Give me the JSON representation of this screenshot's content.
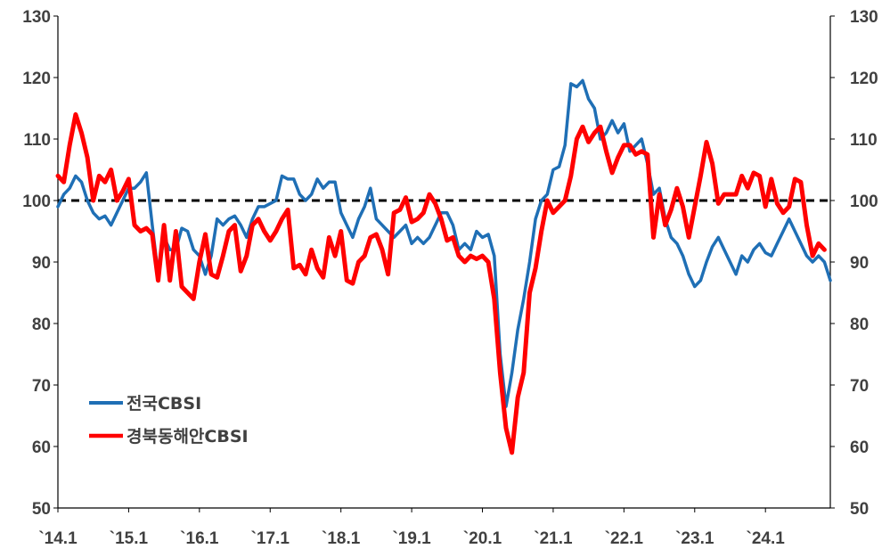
{
  "chart_data": {
    "type": "line",
    "y_left": {
      "min": 50,
      "max": 130,
      "ticks": [
        130,
        120,
        110,
        100,
        90,
        80,
        70,
        60,
        50
      ]
    },
    "y_right": {
      "min": 50,
      "max": 130,
      "ticks": [
        130,
        120,
        110,
        100,
        90,
        80,
        70,
        60,
        50
      ]
    },
    "x_range": [
      0,
      131
    ],
    "x_tick_labels": [
      {
        "label": "`14.1",
        "idx": 0
      },
      {
        "label": "`15.1",
        "idx": 12
      },
      {
        "label": "`16.1",
        "idx": 24
      },
      {
        "label": "`17.1",
        "idx": 36
      },
      {
        "label": "`18.1",
        "idx": 48
      },
      {
        "label": "`19.1",
        "idx": 60
      },
      {
        "label": "`20.1",
        "idx": 72
      },
      {
        "label": "`21.1",
        "idx": 84
      },
      {
        "label": "`22.1",
        "idx": 96
      },
      {
        "label": "`23.1",
        "idx": 108
      },
      {
        "label": "`24.1",
        "idx": 120
      }
    ],
    "reference_line": {
      "value": 100,
      "style": "dashed",
      "color": "#000000"
    },
    "series": [
      {
        "name": "전국CBSI",
        "color": "#1f6fb5",
        "values": [
          99,
          101,
          102,
          104,
          103,
          100,
          98,
          97,
          97.5,
          96,
          98,
          100,
          102,
          102,
          103,
          104.5,
          96,
          88,
          94,
          92,
          92,
          95.5,
          95,
          92,
          91,
          88,
          91,
          97,
          96,
          97,
          97.5,
          96,
          94,
          97,
          99,
          99,
          99.5,
          100,
          104,
          103.5,
          103.5,
          101,
          100,
          101,
          103.5,
          102,
          103,
          103,
          98,
          96,
          94,
          97,
          99,
          102,
          97,
          96,
          95,
          94,
          95,
          96,
          93,
          94,
          93,
          94,
          96,
          98,
          98,
          96,
          92,
          93,
          92,
          95,
          94,
          94.5,
          91,
          75,
          66.5,
          72,
          79,
          84,
          90,
          97,
          100,
          101,
          105,
          105.5,
          109,
          119,
          118.5,
          119.5,
          116.5,
          115,
          110,
          111,
          113,
          111,
          112.5,
          108,
          109,
          110,
          106,
          101,
          102,
          97,
          94,
          93,
          91,
          88,
          86,
          87,
          90,
          92.5,
          94,
          92,
          90,
          88,
          91,
          90,
          92,
          93,
          91.5,
          91,
          93,
          95,
          97,
          95,
          93,
          91,
          90,
          91,
          90,
          87
        ]
      },
      {
        "name": "경북동해안CBSI",
        "color": "#ff0000",
        "values": [
          104,
          103,
          109,
          114,
          111,
          107,
          100,
          104,
          103,
          105,
          100,
          101.5,
          103.5,
          96,
          95,
          95.5,
          94.5,
          87,
          96,
          87,
          95,
          86,
          85,
          84,
          90,
          94.5,
          88,
          87.5,
          91,
          95,
          96,
          88.5,
          91,
          96,
          97,
          95,
          93.5,
          95,
          97,
          98.5,
          89,
          89.5,
          88,
          92,
          89,
          87.5,
          94,
          91,
          95,
          87,
          86.5,
          90,
          91,
          94,
          94.5,
          92,
          88,
          98,
          98.5,
          100.5,
          96.5,
          97,
          98,
          101,
          99.5,
          97,
          93.5,
          94,
          91,
          90,
          91,
          90.5,
          91,
          90,
          84,
          72,
          63,
          59,
          68,
          72,
          85,
          89,
          95,
          100,
          98,
          99,
          100,
          104,
          110,
          112,
          109.5,
          111,
          112,
          108,
          104.5,
          107,
          109,
          109,
          107.5,
          108,
          107.5,
          94,
          101,
          96,
          98.5,
          102,
          99,
          94,
          99,
          104,
          109.5,
          106,
          99.5,
          101,
          101,
          101,
          104,
          102,
          104.5,
          104,
          99,
          103.5,
          99.5,
          98,
          99,
          103.5,
          103,
          96,
          91,
          93,
          92
        ]
      }
    ]
  }
}
